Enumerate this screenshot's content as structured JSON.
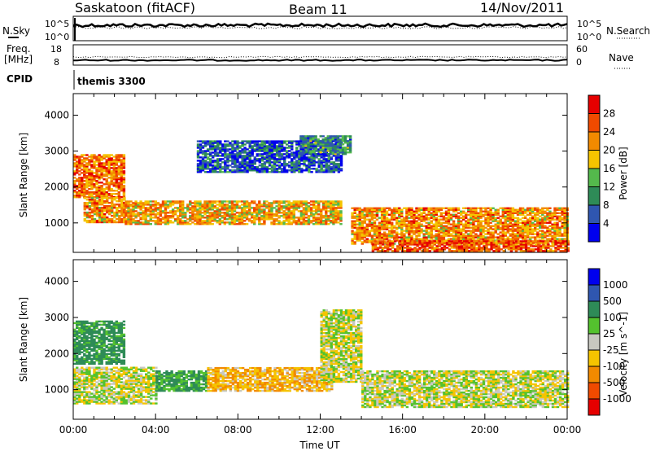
{
  "header": {
    "site": "Saskatoon (fitACF)",
    "beam": "Beam 11",
    "date": "14/Nov/2011"
  },
  "aux": {
    "nsky_label": "N.Sky",
    "nsky_ticks": [
      "10^5",
      "10^0"
    ],
    "nsearch_label": "N.Search",
    "nsearch_ticks": [
      "10^5",
      "10^0"
    ],
    "freq_label_line1": "Freq.",
    "freq_label_line2": "[MHz]",
    "freq_ticks": [
      "18",
      "8"
    ],
    "nave_label": "Nave",
    "nave_ticks": [
      "60",
      "0"
    ],
    "cpid_label": "CPID",
    "cpid_value": "themis 3300"
  },
  "chart_data": [
    {
      "type": "heatmap",
      "name": "power",
      "ylabel": "Slant Range [km]",
      "y_ticks": [
        1000,
        2000,
        3000,
        4000
      ],
      "ylim": [
        180,
        4600
      ],
      "colorbar": {
        "label": "Power [dB]",
        "ticks": [
          28,
          24,
          20,
          16,
          12,
          8,
          4
        ],
        "colors": [
          "#0000ee",
          "#2f56b0",
          "#2e8b57",
          "#54b94c",
          "#f5c400",
          "#f28a00",
          "#f04a00",
          "#e60000"
        ]
      },
      "echo_regions": [
        {
          "t": [
            0.0,
            2.5
          ],
          "r": [
            1700,
            2900
          ],
          "db": 24
        },
        {
          "t": [
            0.5,
            2.5
          ],
          "r": [
            1000,
            1700
          ],
          "db": 22
        },
        {
          "t": [
            2.5,
            13.0
          ],
          "r": [
            950,
            1600
          ],
          "db": 20
        },
        {
          "t": [
            6.0,
            13.0
          ],
          "r": [
            2400,
            3300
          ],
          "db": 6
        },
        {
          "t": [
            11.0,
            13.5
          ],
          "r": [
            2900,
            3400
          ],
          "db": 10
        },
        {
          "t": [
            13.5,
            24.0
          ],
          "r": [
            400,
            1400
          ],
          "db": 22
        },
        {
          "t": [
            14.5,
            24.0
          ],
          "r": [
            200,
            500
          ],
          "db": 26
        }
      ]
    },
    {
      "type": "heatmap",
      "name": "velocity",
      "ylabel": "Slant Range [km]",
      "xlabel": "Time UT",
      "x_ticks": [
        "00:00",
        "04:00",
        "08:00",
        "12:00",
        "16:00",
        "20:00",
        "00:00"
      ],
      "xlim": [
        0,
        24
      ],
      "y_ticks": [
        1000,
        2000,
        3000,
        4000
      ],
      "ylim": [
        180,
        4600
      ],
      "colorbar": {
        "label": "Velocity [m s^-1]",
        "ticks": [
          1000,
          500,
          100,
          25,
          -25,
          -100,
          -500,
          -1000
        ],
        "colors": [
          "#e60000",
          "#f04a00",
          "#f28a00",
          "#f5c400",
          "#c8c8c0",
          "#54c22e",
          "#2e8b57",
          "#2f56b0",
          "#0000ee"
        ]
      },
      "echo_regions": [
        {
          "t": [
            0.0,
            2.5
          ],
          "r": [
            1700,
            2900
          ],
          "v": 150
        },
        {
          "t": [
            0.0,
            4.0
          ],
          "r": [
            600,
            1600
          ],
          "v": 0
        },
        {
          "t": [
            4.0,
            6.5
          ],
          "r": [
            950,
            1500
          ],
          "v": 120
        },
        {
          "t": [
            6.5,
            12.5
          ],
          "r": [
            950,
            1600
          ],
          "v": -80
        },
        {
          "t": [
            12.0,
            14.0
          ],
          "r": [
            1200,
            3200
          ],
          "v": 0
        },
        {
          "t": [
            14.0,
            24.0
          ],
          "r": [
            500,
            1500
          ],
          "v": 0
        }
      ]
    }
  ]
}
